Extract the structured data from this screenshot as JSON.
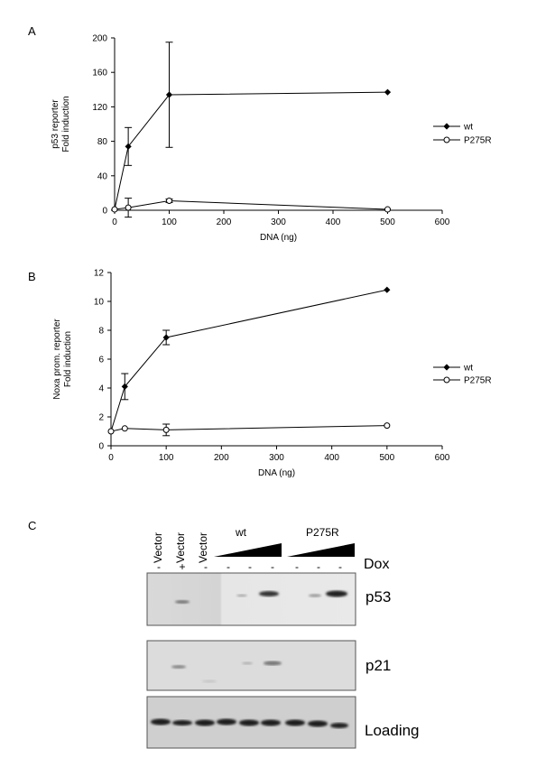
{
  "chart_data": [
    {
      "panel": "A",
      "type": "line",
      "xlabel": "DNA (ng)",
      "ylabel_lines": [
        "p53 reporter",
        "Fold induction"
      ],
      "xlim": [
        0,
        600
      ],
      "ylim": [
        0,
        200
      ],
      "xticks": [
        0,
        100,
        200,
        300,
        400,
        500,
        600
      ],
      "yticks": [
        0,
        40,
        80,
        120,
        160,
        200
      ],
      "legend_position": "right",
      "series": [
        {
          "name": "wt",
          "marker": "filled-diamond",
          "x": [
            0,
            25,
            100,
            500
          ],
          "y": [
            1,
            74,
            134,
            137
          ],
          "err": [
            0,
            22,
            61,
            0
          ]
        },
        {
          "name": "P275R",
          "marker": "open-circle",
          "x": [
            0,
            25,
            100,
            500
          ],
          "y": [
            1,
            3,
            11,
            1
          ],
          "err": [
            0,
            11,
            2,
            0
          ]
        }
      ]
    },
    {
      "panel": "B",
      "type": "line",
      "xlabel": "DNA (ng)",
      "ylabel_lines": [
        "Noxa prom. reporter",
        "Fold induction"
      ],
      "xlim": [
        0,
        600
      ],
      "ylim": [
        0,
        12
      ],
      "xticks": [
        0,
        100,
        200,
        300,
        400,
        500,
        600
      ],
      "yticks": [
        0,
        2,
        4,
        6,
        8,
        10,
        12
      ],
      "legend_position": "right",
      "series": [
        {
          "name": "wt",
          "marker": "filled-diamond",
          "x": [
            0,
            25,
            100,
            500
          ],
          "y": [
            1,
            4.1,
            7.5,
            10.8
          ],
          "err": [
            0,
            0.9,
            0.5,
            0
          ]
        },
        {
          "name": "P275R",
          "marker": "open-circle",
          "x": [
            0,
            25,
            100,
            500
          ],
          "y": [
            1,
            1.2,
            1.1,
            1.4
          ],
          "err": [
            0,
            0,
            0.4,
            0
          ]
        }
      ]
    }
  ],
  "panel_c": {
    "letter": "C",
    "lane_labels": [
      "Vector",
      "Vector",
      "Vector"
    ],
    "dox_signs": [
      "-",
      "+",
      "-",
      "-",
      "-",
      "-",
      "-",
      "-",
      "-"
    ],
    "dox_label": "Dox",
    "group_wt": "wt",
    "group_mut": "P275R",
    "blots": [
      {
        "label": "p53"
      },
      {
        "label": "p21"
      },
      {
        "label": "Loading"
      }
    ]
  }
}
